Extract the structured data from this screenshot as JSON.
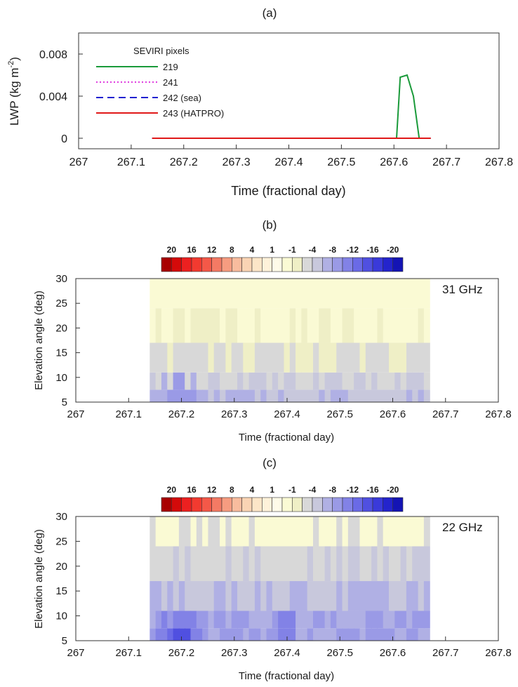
{
  "chart_data": [
    {
      "type": "line",
      "panel_label": "(a)",
      "xlabel": "Time (fractional day)",
      "ylabel": "LWP (kg m",
      "ylabel_sup": "-2",
      "ylabel_end": ")",
      "xlim": [
        267,
        267.8
      ],
      "ylim": [
        -0.001,
        0.01
      ],
      "xticks": [
        267,
        267.1,
        267.2,
        267.3,
        267.4,
        267.5,
        267.6,
        267.7,
        267.8
      ],
      "xtick_labels": [
        "267",
        "267.1",
        "267.2",
        "267.3",
        "267.4",
        "267.5",
        "267.6",
        "267.7",
        "267.8"
      ],
      "yticks": [
        0,
        0.004,
        0.008
      ],
      "ytick_labels": [
        "0",
        "0.004",
        "0.008"
      ],
      "legend_title": "SEVIRI pixels",
      "legend_placement": "top-left",
      "series": [
        {
          "name": "219",
          "color": "#1a9a3a",
          "style": "solid",
          "x": [
            267.14,
            267.605,
            267.612,
            267.625,
            267.637,
            267.648,
            267.67
          ],
          "y": [
            0,
            0,
            0.0058,
            0.006,
            0.004,
            0,
            0
          ]
        },
        {
          "name": "241",
          "color": "#e040e0",
          "style": "dotted",
          "x": [
            267.14,
            267.67
          ],
          "y": [
            0,
            0
          ]
        },
        {
          "name": "242 (sea)",
          "color": "#2020d0",
          "style": "dashed",
          "x": [
            267.14,
            267.67
          ],
          "y": [
            0,
            0
          ]
        },
        {
          "name": "243 (HATPRO)",
          "color": "#e01818",
          "style": "solid",
          "x": [
            267.14,
            267.67
          ],
          "y": [
            0,
            0
          ]
        }
      ]
    },
    {
      "type": "heatmap",
      "panel_label": "(b)",
      "annotation": "31 GHz",
      "xlabel": "Time (fractional day)",
      "ylabel": "Elevation angle (deg)",
      "xlim": [
        267,
        267.8
      ],
      "ylim": [
        5,
        30
      ],
      "xticks": [
        267,
        267.1,
        267.2,
        267.3,
        267.4,
        267.5,
        267.6,
        267.7,
        267.8
      ],
      "xtick_labels": [
        "267",
        "267.1",
        "267.2",
        "267.3",
        "267.4",
        "267.5",
        "267.6",
        "267.7",
        "267.8"
      ],
      "yticks": [
        5,
        10,
        15,
        20,
        25,
        30
      ],
      "ytick_labels": [
        "5",
        "10",
        "15",
        "20",
        "25",
        "30"
      ],
      "data_x_range": [
        267.14,
        267.67
      ],
      "colorbar_labels": [
        "20",
        "16",
        "12",
        "8",
        "4",
        "1",
        "-1",
        "-4",
        "-8",
        "-12",
        "-16",
        "-20"
      ]
    },
    {
      "type": "heatmap",
      "panel_label": "(c)",
      "annotation": "22 GHz",
      "xlabel": "Time (fractional day)",
      "ylabel": "Elevation angle (deg)",
      "xlim": [
        267,
        267.8
      ],
      "ylim": [
        5,
        30
      ],
      "xticks": [
        267,
        267.1,
        267.2,
        267.3,
        267.4,
        267.5,
        267.6,
        267.7,
        267.8
      ],
      "xtick_labels": [
        "267",
        "267.1",
        "267.2",
        "267.3",
        "267.4",
        "267.5",
        "267.6",
        "267.7",
        "267.8"
      ],
      "yticks": [
        5,
        10,
        15,
        20,
        25,
        30
      ],
      "ytick_labels": [
        "5",
        "10",
        "15",
        "20",
        "25",
        "30"
      ],
      "data_x_range": [
        267.14,
        267.67
      ],
      "colorbar_labels": [
        "20",
        "16",
        "12",
        "8",
        "4",
        "1",
        "-1",
        "-4",
        "-8",
        "-12",
        "-16",
        "-20"
      ]
    }
  ],
  "colorbar_colors": [
    "#a80000",
    "#d40a0a",
    "#ec2020",
    "#f23a30",
    "#f45848",
    "#f47a64",
    "#f69c80",
    "#f8bc9e",
    "#fad4b4",
    "#fce6c8",
    "#fef2da",
    "#fefbe8",
    "#fafad4",
    "#efefc6",
    "#d8d8d8",
    "#c8c8dc",
    "#b0b0e4",
    "#9a9ae6",
    "#8282e6",
    "#6a6ae6",
    "#5050e0",
    "#3a3ada",
    "#2424cc",
    "#1414b4"
  ]
}
